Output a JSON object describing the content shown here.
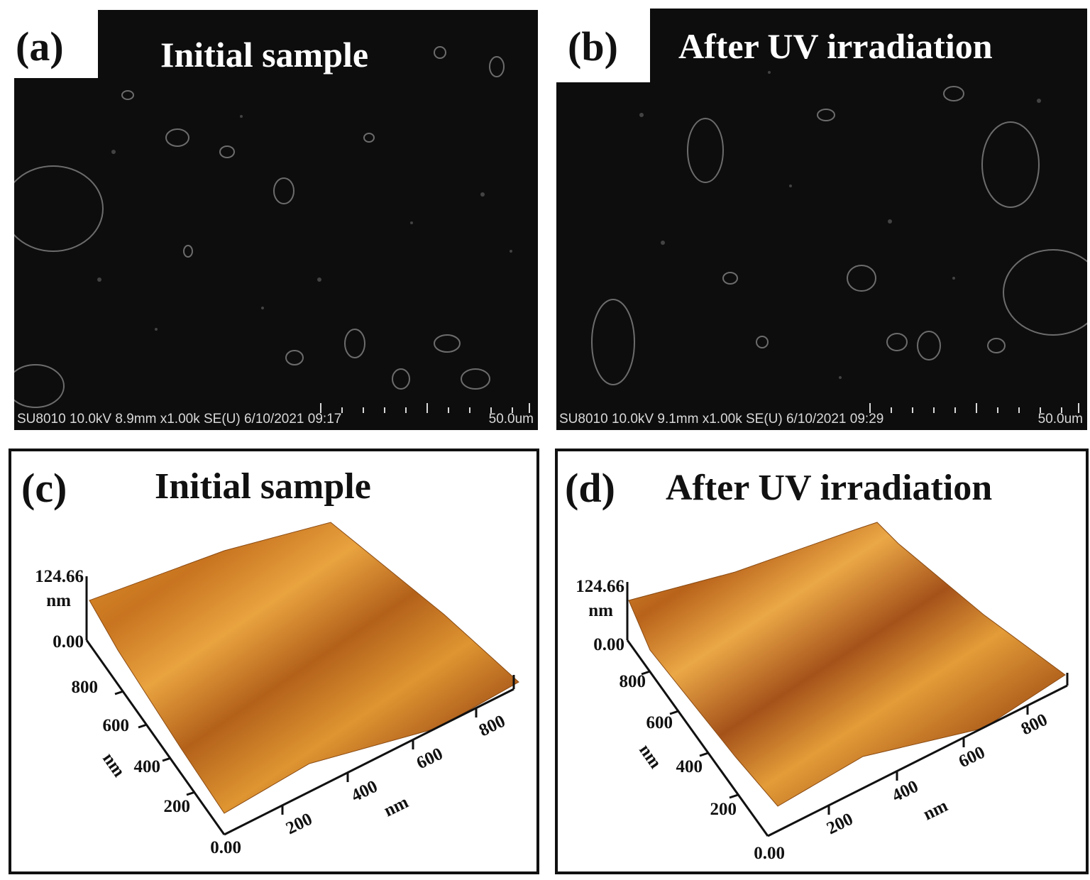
{
  "panels": {
    "a": {
      "letter": "(a)",
      "title": "Initial sample",
      "meta": "SU8010 10.0kV 8.9mm x1.00k SE(U) 6/10/2021 09:17",
      "scale": "50.0um"
    },
    "b": {
      "letter": "(b)",
      "title": "After UV irradiation",
      "meta": "SU8010 10.0kV 9.1mm x1.00k SE(U) 6/10/2021 09:29",
      "scale": "50.0um"
    },
    "c": {
      "letter": "(c)",
      "title": "Initial sample",
      "z_max": "124.66",
      "z_unit": "nm",
      "z_min": "0.00",
      "origin": "0.00",
      "y_ticks": [
        "200",
        "400",
        "600",
        "800"
      ],
      "x_ticks": [
        "200",
        "400",
        "600",
        "800"
      ],
      "y_unit": "nm",
      "x_unit": "nm"
    },
    "d": {
      "letter": "(d)",
      "title": "After UV irradiation",
      "z_max": "124.66",
      "z_unit": "nm",
      "z_min": "0.00",
      "origin": "0.00",
      "y_ticks": [
        "200",
        "400",
        "600",
        "800"
      ],
      "x_ticks": [
        "200",
        "400",
        "600",
        "800"
      ],
      "y_unit": "nm",
      "x_unit": "nm"
    }
  },
  "colors": {
    "sem_bg": "#0d0d0d",
    "sem_feature": "#9a9a9a",
    "afm_light": "#e9a33f",
    "afm_mid": "#cf7f22",
    "afm_dark": "#9c5012"
  }
}
